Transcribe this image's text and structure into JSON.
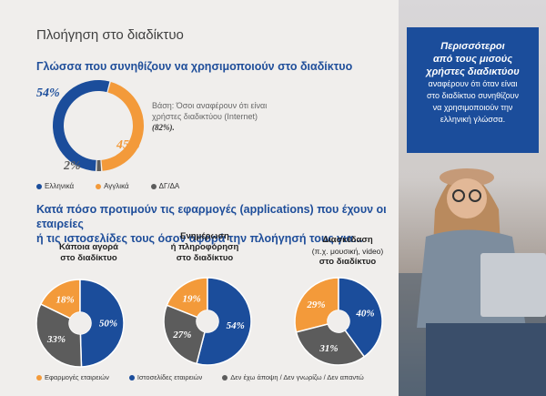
{
  "page_title": "Πλοήγηση στο διαδίκτυο",
  "section1": {
    "title": "Γλώσσα που συνηθίζουν να χρησιμοποιούν στο διαδίκτυο",
    "labels": {
      "greek": "54%",
      "english": "45%",
      "dk": "2%"
    },
    "base_note_line1": "Βάση: Όσοι αναφέρουν ότι είναι",
    "base_note_line2": "χρήστες διαδικτύου (Internet)",
    "base_note_pct": "(82%).",
    "legend": [
      "Ελληνικά",
      "Αγγλικά",
      "ΔΓ/ΔΑ"
    ]
  },
  "section2": {
    "title_line1": "Κατά πόσο προτιμούν τις εφαρμογές (applications) που έχουν οι εταιρείες",
    "title_line2": "ή τις ιστοσελίδες τους όσον αφορά την πλοήγησή τους για...",
    "pies": [
      {
        "title1": "Κάποια αγορά",
        "title2": "στο διαδίκτυο",
        "title3": "",
        "apps": "18%",
        "websites": "50%",
        "dk": "33%"
      },
      {
        "title1": "Ενημέρωση",
        "title2": "ή πληροφόρηση",
        "title3": "στο διαδίκτυο",
        "apps": "19%",
        "websites": "54%",
        "dk": "27%"
      },
      {
        "title1": "Διασκέδαση",
        "title2": "(π.χ. μουσική, video)",
        "title3": "στο διαδίκτυο",
        "apps": "29%",
        "websites": "40%",
        "dk": "31%"
      }
    ],
    "legend": [
      "Εφαρμογές εταιρειών",
      "Ιστοσελίδες εταιρειών",
      "Δεν έχω άποψη / Δεν γνωρίζω / Δεν απαντώ"
    ]
  },
  "callout": {
    "headline": [
      "Περισσότεροι",
      "από τους μισούς",
      "χρήστες διαδικτύου"
    ],
    "body": [
      "αναφέρουν ότι όταν είναι",
      "στο διαδίκτυο συνηθίζουν",
      "να χρησιμοποιούν την",
      "ελληνική γλώσσα."
    ]
  },
  "chart_data": [
    {
      "type": "pie",
      "title": "Γλώσσα που συνηθίζουν να χρησιμοποιούν στο διαδίκτυο",
      "categories": [
        "Ελληνικά",
        "Αγγλικά",
        "ΔΓ/ΔΑ"
      ],
      "values": [
        54,
        45,
        2
      ]
    },
    {
      "type": "pie",
      "title": "Κάποια αγορά στο διαδίκτυο",
      "categories": [
        "Εφαρμογές εταιρειών",
        "Ιστοσελίδες εταιρειών",
        "Δεν έχω άποψη / Δεν γνωρίζω / Δεν απαντώ"
      ],
      "values": [
        18,
        50,
        33
      ]
    },
    {
      "type": "pie",
      "title": "Ενημέρωση ή πληροφόρηση στο διαδίκτυο",
      "categories": [
        "Εφαρμογές εταιρειών",
        "Ιστοσελίδες εταιρειών",
        "Δεν έχω άποψη / Δεν γνωρίζω / Δεν απαντώ"
      ],
      "values": [
        19,
        54,
        27
      ]
    },
    {
      "type": "pie",
      "title": "Διασκέδαση (π.χ. μουσική, video) στο διαδίκτυο",
      "categories": [
        "Εφαρμογές εταιρειών",
        "Ιστοσελίδες εταιρειών",
        "Δεν έχω άποψη / Δεν γνωρίζω / Δεν απαντώ"
      ],
      "values": [
        29,
        40,
        31
      ]
    }
  ],
  "colors": {
    "blue": "#1b4d9b",
    "orange": "#f39a3a",
    "gray": "#5c5c5c"
  }
}
